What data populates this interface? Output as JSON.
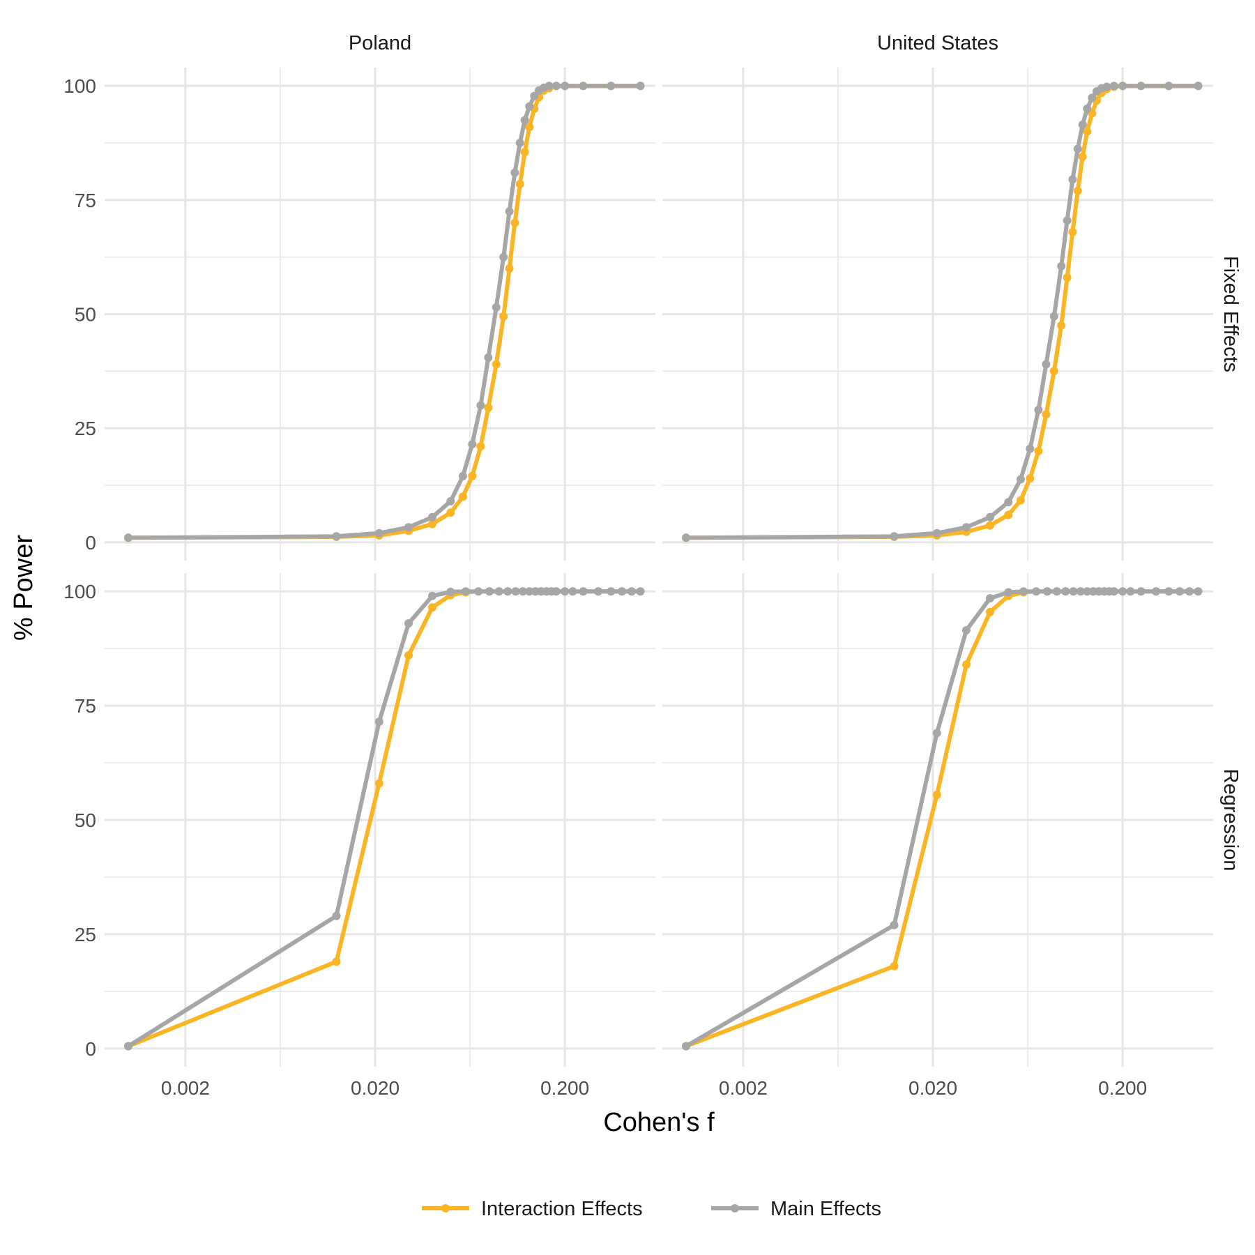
{
  "chart_data": {
    "type": "line",
    "title": "",
    "xlabel": "Cohen's f",
    "ylabel": "% Power",
    "x_scale": "log10",
    "xlim": [
      0.00075,
      0.6
    ],
    "ylim": [
      -4,
      104
    ],
    "x_ticks": [
      {
        "value": 0.002,
        "label": "0.002"
      },
      {
        "value": 0.02,
        "label": "0.020"
      },
      {
        "value": 0.2,
        "label": "0.200"
      }
    ],
    "y_ticks": [
      {
        "value": 0,
        "label": "0"
      },
      {
        "value": 25,
        "label": "25"
      },
      {
        "value": 50,
        "label": "50"
      },
      {
        "value": 75,
        "label": "75"
      },
      {
        "value": 100,
        "label": "100"
      }
    ],
    "grid": true,
    "legend_position": "bottom",
    "legend": [
      {
        "name": "Interaction Effects",
        "color": "#FBB524"
      },
      {
        "name": "Main Effects",
        "color": "#A6A6A6"
      }
    ],
    "facet_columns": [
      "Poland",
      "United States"
    ],
    "facet_rows": [
      "Fixed Effects",
      "Regression"
    ],
    "panels": [
      {
        "column": "Poland",
        "row": "Fixed Effects",
        "series": [
          {
            "name": "Interaction Effects",
            "x": [
              0.001,
              0.0125,
              0.021,
              0.03,
              0.04,
              0.05,
              0.058,
              0.065,
              0.072,
              0.079,
              0.087,
              0.095,
              0.102,
              0.109,
              0.116,
              0.123,
              0.13,
              0.138,
              0.146,
              0.155,
              0.165,
              0.18,
              0.2,
              0.25,
              0.35,
              0.5
            ],
            "y": [
              1,
              1.2,
              1.5,
              2.5,
              4,
              6.5,
              10,
              14.5,
              21,
              29.5,
              39,
              49.5,
              60,
              70,
              78.5,
              85.5,
              91,
              95,
              97.5,
              99,
              99.5,
              100,
              100,
              100,
              100,
              100
            ]
          },
          {
            "name": "Main Effects",
            "x": [
              0.001,
              0.0125,
              0.021,
              0.03,
              0.04,
              0.05,
              0.058,
              0.065,
              0.072,
              0.079,
              0.087,
              0.095,
              0.102,
              0.109,
              0.116,
              0.123,
              0.13,
              0.138,
              0.146,
              0.155,
              0.165,
              0.18,
              0.2,
              0.25,
              0.35,
              0.5
            ],
            "y": [
              1,
              1.3,
              2,
              3.3,
              5.5,
              9,
              14.5,
              21.5,
              30,
              40.5,
              51.5,
              62.5,
              72.5,
              81,
              87.5,
              92.5,
              95.5,
              97.8,
              99,
              99.6,
              100,
              100,
              100,
              100,
              100,
              100
            ]
          }
        ]
      },
      {
        "column": "United States",
        "row": "Fixed Effects",
        "series": [
          {
            "name": "Interaction Effects",
            "x": [
              0.001,
              0.0125,
              0.021,
              0.03,
              0.04,
              0.05,
              0.058,
              0.065,
              0.072,
              0.079,
              0.087,
              0.095,
              0.102,
              0.109,
              0.116,
              0.123,
              0.13,
              0.138,
              0.146,
              0.155,
              0.165,
              0.18,
              0.2,
              0.25,
              0.35,
              0.5
            ],
            "y": [
              1,
              1.2,
              1.5,
              2.3,
              3.7,
              6,
              9.2,
              14,
              20,
              28,
              37.5,
              47.5,
              58,
              68,
              77,
              84.5,
              90,
              94,
              96.8,
              98.5,
              99.3,
              99.8,
              100,
              100,
              100,
              100
            ]
          },
          {
            "name": "Main Effects",
            "x": [
              0.001,
              0.0125,
              0.021,
              0.03,
              0.04,
              0.05,
              0.058,
              0.065,
              0.072,
              0.079,
              0.087,
              0.095,
              0.102,
              0.109,
              0.116,
              0.123,
              0.13,
              0.138,
              0.146,
              0.155,
              0.165,
              0.18,
              0.2,
              0.25,
              0.35,
              0.5
            ],
            "y": [
              1,
              1.3,
              2,
              3.3,
              5.5,
              8.8,
              13.8,
              20.5,
              29,
              39,
              49.5,
              60.5,
              70.5,
              79.5,
              86.2,
              91.5,
              95,
              97.4,
              98.8,
              99.5,
              99.8,
              100,
              100,
              100,
              100,
              100
            ]
          }
        ]
      },
      {
        "column": "Poland",
        "row": "Regression",
        "series": [
          {
            "name": "Interaction Effects",
            "x": [
              0.001,
              0.0125,
              0.021,
              0.03,
              0.04,
              0.05,
              0.06,
              0.07,
              0.08,
              0.09,
              0.1,
              0.11,
              0.12,
              0.13,
              0.14,
              0.15,
              0.16,
              0.17,
              0.18,
              0.2,
              0.22,
              0.25,
              0.3,
              0.35,
              0.4,
              0.45,
              0.5
            ],
            "y": [
              0.5,
              19,
              58,
              86,
              96.5,
              99.2,
              99.8,
              100,
              100,
              100,
              100,
              100,
              100,
              100,
              100,
              100,
              100,
              100,
              100,
              100,
              100,
              100,
              100,
              100,
              100,
              100,
              100
            ]
          },
          {
            "name": "Main Effects",
            "x": [
              0.001,
              0.0125,
              0.021,
              0.03,
              0.04,
              0.05,
              0.06,
              0.07,
              0.08,
              0.09,
              0.1,
              0.11,
              0.12,
              0.13,
              0.14,
              0.15,
              0.16,
              0.17,
              0.18,
              0.2,
              0.22,
              0.25,
              0.3,
              0.35,
              0.4,
              0.45,
              0.5
            ],
            "y": [
              0.5,
              29,
              71.5,
              93,
              99,
              99.9,
              100,
              100,
              100,
              100,
              100,
              100,
              100,
              100,
              100,
              100,
              100,
              100,
              100,
              100,
              100,
              100,
              100,
              100,
              100,
              100,
              100
            ]
          }
        ]
      },
      {
        "column": "United States",
        "row": "Regression",
        "series": [
          {
            "name": "Interaction Effects",
            "x": [
              0.001,
              0.0125,
              0.021,
              0.03,
              0.04,
              0.05,
              0.06,
              0.07,
              0.08,
              0.09,
              0.1,
              0.11,
              0.12,
              0.13,
              0.14,
              0.15,
              0.16,
              0.17,
              0.18,
              0.2,
              0.22,
              0.25,
              0.3,
              0.35,
              0.4,
              0.45,
              0.5
            ],
            "y": [
              0.5,
              18,
              55.5,
              84,
              95.5,
              99,
              99.8,
              100,
              100,
              100,
              100,
              100,
              100,
              100,
              100,
              100,
              100,
              100,
              100,
              100,
              100,
              100,
              100,
              100,
              100,
              100,
              100
            ]
          },
          {
            "name": "Main Effects",
            "x": [
              0.001,
              0.0125,
              0.021,
              0.03,
              0.04,
              0.05,
              0.06,
              0.07,
              0.08,
              0.09,
              0.1,
              0.11,
              0.12,
              0.13,
              0.14,
              0.15,
              0.16,
              0.17,
              0.18,
              0.2,
              0.22,
              0.25,
              0.3,
              0.35,
              0.4,
              0.45,
              0.5
            ],
            "y": [
              0.5,
              27,
              69,
              91.5,
              98.5,
              99.8,
              100,
              100,
              100,
              100,
              100,
              100,
              100,
              100,
              100,
              100,
              100,
              100,
              100,
              100,
              100,
              100,
              100,
              100,
              100,
              100,
              100
            ]
          }
        ]
      }
    ]
  }
}
